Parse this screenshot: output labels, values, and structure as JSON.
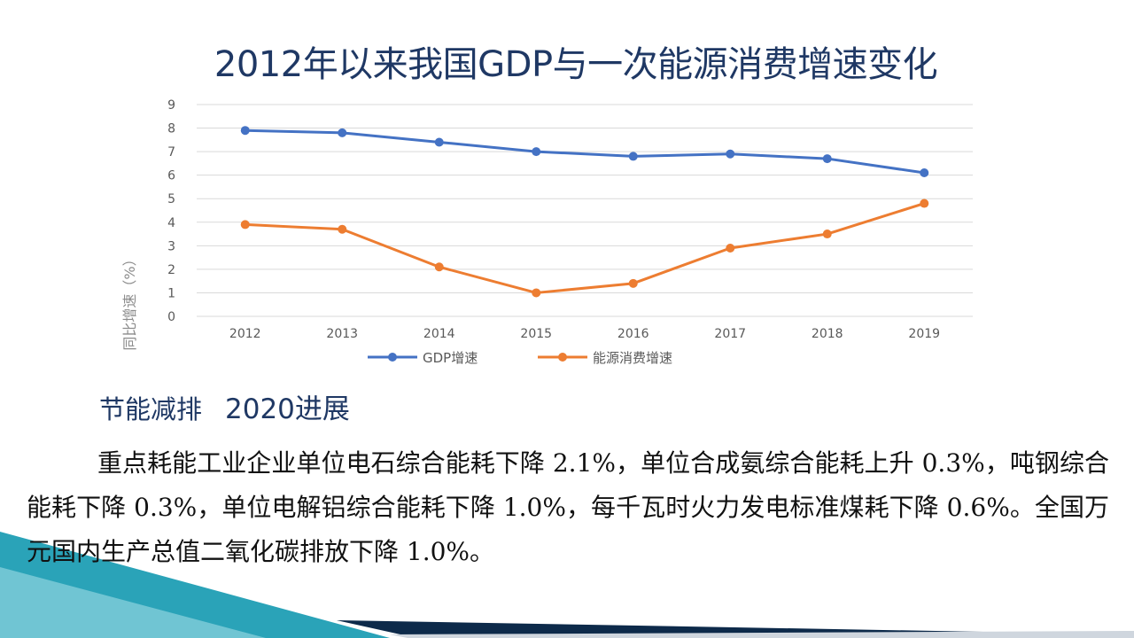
{
  "slide": {
    "title": "2012年以来我国GDP与一次能源消费增速变化",
    "section_heading": "节能减排",
    "section_heading_2": "2020进展",
    "body_text": "重点耗能工业企业单位电石综合能耗下降 2.1%，单位合成氨综合能耗上升 0.3%，吨钢综合能耗下降 0.3%，单位电解铝综合能耗下降 1.0%，每千瓦时火力发电标准煤耗下降 0.6%。全国万元国内生产总值二氧化碳排放下降 1.0%。"
  },
  "chart_data": {
    "type": "line",
    "title": "",
    "xlabel": "",
    "ylabel": "同比增速（%）",
    "x": [
      "2012",
      "2013",
      "2014",
      "2015",
      "2016",
      "2017",
      "2018",
      "2019"
    ],
    "ylim": [
      0,
      9
    ],
    "yticks": [
      "0",
      "1",
      "2",
      "3",
      "4",
      "5",
      "6",
      "7",
      "8",
      "9"
    ],
    "grid": true,
    "legend_position": "bottom",
    "series": [
      {
        "name": "GDP增速",
        "color": "#4472c4",
        "values": [
          7.9,
          7.8,
          7.4,
          7.0,
          6.8,
          6.9,
          6.7,
          6.1
        ]
      },
      {
        "name": "能源消费增速",
        "color": "#ed7d31",
        "values": [
          3.9,
          3.7,
          2.1,
          1.0,
          1.4,
          2.9,
          3.5,
          4.8
        ]
      }
    ]
  },
  "colors": {
    "title": "#1f3864",
    "accent_teal": "#2aa3b8",
    "dark_blue": "#1f3864"
  }
}
